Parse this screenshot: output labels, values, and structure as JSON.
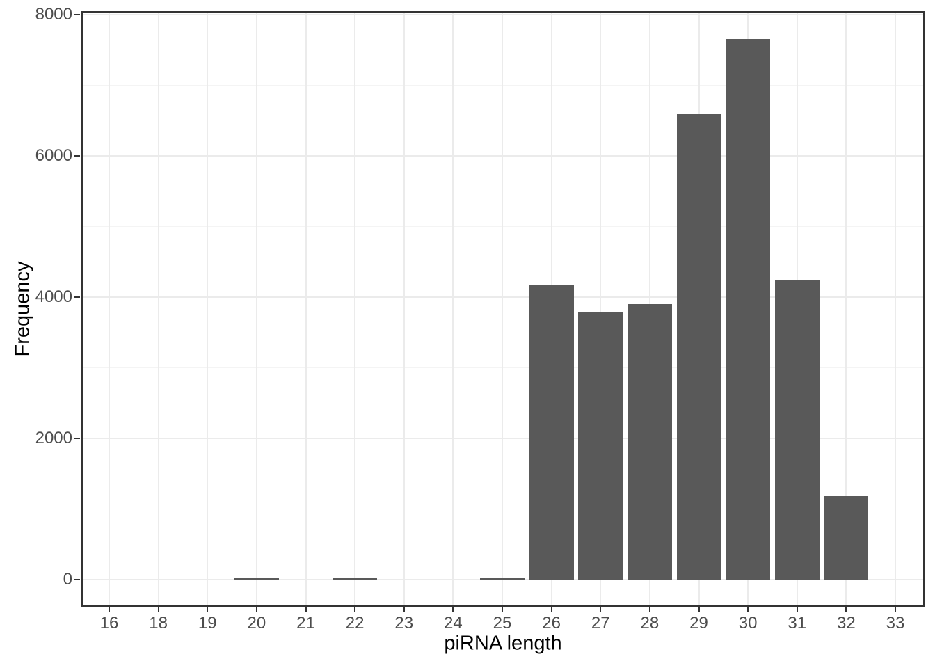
{
  "chart_data": {
    "type": "bar",
    "title": "",
    "xlabel": "piRNA length",
    "ylabel": "Frequency",
    "categories": [
      "16",
      "18",
      "19",
      "20",
      "21",
      "22",
      "23",
      "24",
      "25",
      "26",
      "27",
      "28",
      "29",
      "30",
      "31",
      "32",
      "33"
    ],
    "values": [
      0,
      0,
      0,
      20,
      0,
      15,
      0,
      0,
      15,
      4180,
      3790,
      3900,
      6590,
      7660,
      4240,
      1180,
      0
    ],
    "ylim": [
      0,
      8000
    ],
    "yticks": [
      0,
      2000,
      4000,
      6000,
      8000
    ],
    "ytick_labels": [
      "0",
      "2000",
      "4000",
      "6000",
      "8000"
    ],
    "minor_yticks": [
      1000,
      3000,
      5000,
      7000
    ],
    "grid": "on",
    "legend": "none",
    "colors": {
      "bar_fill": "#595959",
      "panel_border": "#333333",
      "grid_major": "#ebebeb",
      "grid_minor": "#f4f4f4",
      "tick_label": "#4d4d4d",
      "axis_title": "#000000",
      "background": "#ffffff"
    }
  }
}
